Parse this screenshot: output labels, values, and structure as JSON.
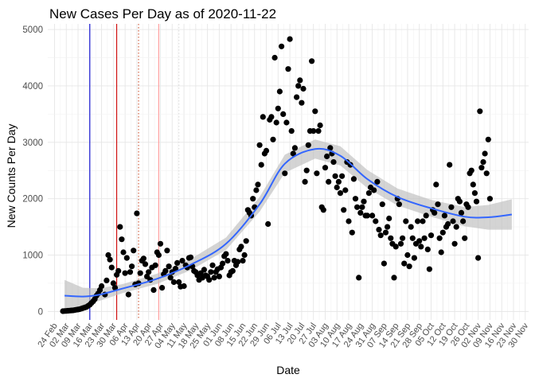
{
  "chart_data": {
    "type": "scatter",
    "title": "New Cases Per Day as of 2020-11-22",
    "xlabel": "Date",
    "ylabel": "New Counts Per Day",
    "xlim": [
      "2020-02-20",
      "2020-12-02"
    ],
    "ylim": [
      -150,
      5100
    ],
    "y_ticks": [
      0,
      1000,
      2000,
      3000,
      4000,
      5000
    ],
    "x_tick_labels": [
      "24 Feb",
      "02 Mar",
      "09 Mar",
      "16 Mar",
      "23 Mar",
      "30 Mar",
      "06 Apr",
      "13 Apr",
      "20 Apr",
      "27 Apr",
      "04 May",
      "11 May",
      "18 May",
      "25 May",
      "01 Jun",
      "08 Jun",
      "15 Jun",
      "22 Jun",
      "29 Jun",
      "06 Jul",
      "13 Jul",
      "20 Jul",
      "27 Jul",
      "03 Aug",
      "10 Aug",
      "17 Aug",
      "24 Aug",
      "31 Aug",
      "07 Sep",
      "14 Sep",
      "21 Sep",
      "28 Sep",
      "05 Oct",
      "12 Oct",
      "19 Oct",
      "26 Oct",
      "02 Nov",
      "09 Nov",
      "16 Nov",
      "23 Nov",
      "30 Nov"
    ],
    "x_tick_dates": [
      "2020-02-24",
      "2020-03-02",
      "2020-03-09",
      "2020-03-16",
      "2020-03-23",
      "2020-03-30",
      "2020-04-06",
      "2020-04-13",
      "2020-04-20",
      "2020-04-27",
      "2020-05-04",
      "2020-05-11",
      "2020-05-18",
      "2020-05-25",
      "2020-06-01",
      "2020-06-08",
      "2020-06-15",
      "2020-06-22",
      "2020-06-29",
      "2020-07-06",
      "2020-07-13",
      "2020-07-20",
      "2020-07-27",
      "2020-08-03",
      "2020-08-10",
      "2020-08-17",
      "2020-08-24",
      "2020-08-31",
      "2020-09-07",
      "2020-09-14",
      "2020-09-21",
      "2020-09-28",
      "2020-10-05",
      "2020-10-12",
      "2020-10-19",
      "2020-10-26",
      "2020-11-02",
      "2020-11-09",
      "2020-11-16",
      "2020-11-23",
      "2020-11-30"
    ],
    "grid": true,
    "vertical_lines": [
      {
        "date": "2020-03-16",
        "color": "#0000cc",
        "style": "solid"
      },
      {
        "date": "2020-04-01",
        "color": "#cc0000",
        "style": "solid"
      },
      {
        "date": "2020-04-14",
        "color": "#cc5533",
        "style": "dotted"
      },
      {
        "date": "2020-04-26",
        "color": "#ff9999",
        "style": "solid"
      },
      {
        "date": "2020-05-08",
        "color": "#dddddd",
        "style": "dotted"
      }
    ],
    "point_color": "#000000",
    "smooth": {
      "color": "#3366ff",
      "band_color": "#bdbdbd",
      "points": [
        {
          "x": "2020-03-01",
          "y": 280,
          "lo": 20,
          "hi": 560
        },
        {
          "x": "2020-03-12",
          "y": 265,
          "lo": 110,
          "hi": 420
        },
        {
          "x": "2020-03-22",
          "y": 300,
          "lo": 190,
          "hi": 410
        },
        {
          "x": "2020-04-05",
          "y": 410,
          "lo": 330,
          "hi": 490
        },
        {
          "x": "2020-04-25",
          "y": 580,
          "lo": 490,
          "hi": 670
        },
        {
          "x": "2020-05-15",
          "y": 830,
          "lo": 730,
          "hi": 930
        },
        {
          "x": "2020-06-05",
          "y": 1200,
          "lo": 1090,
          "hi": 1310
        },
        {
          "x": "2020-06-25",
          "y": 1900,
          "lo": 1770,
          "hi": 2030
        },
        {
          "x": "2020-07-10",
          "y": 2620,
          "lo": 2460,
          "hi": 2780
        },
        {
          "x": "2020-07-28",
          "y": 2880,
          "lo": 2710,
          "hi": 3050
        },
        {
          "x": "2020-08-12",
          "y": 2760,
          "lo": 2590,
          "hi": 2930
        },
        {
          "x": "2020-08-28",
          "y": 2350,
          "lo": 2190,
          "hi": 2510
        },
        {
          "x": "2020-09-15",
          "y": 2030,
          "lo": 1880,
          "hi": 2180
        },
        {
          "x": "2020-10-05",
          "y": 1830,
          "lo": 1680,
          "hi": 1980
        },
        {
          "x": "2020-10-25",
          "y": 1680,
          "lo": 1510,
          "hi": 1850
        },
        {
          "x": "2020-11-08",
          "y": 1670,
          "lo": 1450,
          "hi": 1890
        },
        {
          "x": "2020-11-22",
          "y": 1720,
          "lo": 1450,
          "hi": 1990
        }
      ]
    },
    "points": [
      [
        "2020-02-29",
        5
      ],
      [
        "2020-03-01",
        8
      ],
      [
        "2020-03-02",
        10
      ],
      [
        "2020-03-03",
        12
      ],
      [
        "2020-03-04",
        15
      ],
      [
        "2020-03-05",
        18
      ],
      [
        "2020-03-06",
        20
      ],
      [
        "2020-03-07",
        25
      ],
      [
        "2020-03-08",
        30
      ],
      [
        "2020-03-09",
        35
      ],
      [
        "2020-03-10",
        40
      ],
      [
        "2020-03-11",
        50
      ],
      [
        "2020-03-12",
        60
      ],
      [
        "2020-03-13",
        70
      ],
      [
        "2020-03-14",
        80
      ],
      [
        "2020-03-15",
        100
      ],
      [
        "2020-03-16",
        120
      ],
      [
        "2020-03-17",
        150
      ],
      [
        "2020-03-18",
        180
      ],
      [
        "2020-03-19",
        220
      ],
      [
        "2020-03-20",
        280
      ],
      [
        "2020-03-21",
        320
      ],
      [
        "2020-03-22",
        380
      ],
      [
        "2020-03-23",
        450
      ],
      [
        "2020-03-25",
        300
      ],
      [
        "2020-03-26",
        550
      ],
      [
        "2020-03-27",
        1000
      ],
      [
        "2020-03-28",
        920
      ],
      [
        "2020-03-29",
        780
      ],
      [
        "2020-03-30",
        500
      ],
      [
        "2020-03-31",
        420
      ],
      [
        "2020-04-01",
        650
      ],
      [
        "2020-04-02",
        720
      ],
      [
        "2020-04-03",
        1500
      ],
      [
        "2020-04-04",
        1280
      ],
      [
        "2020-04-05",
        1050
      ],
      [
        "2020-04-06",
        680
      ],
      [
        "2020-04-07",
        950
      ],
      [
        "2020-04-08",
        300
      ],
      [
        "2020-04-09",
        700
      ],
      [
        "2020-04-10",
        800
      ],
      [
        "2020-04-11",
        1080
      ],
      [
        "2020-04-12",
        480
      ],
      [
        "2020-04-13",
        1740
      ],
      [
        "2020-04-14",
        500
      ],
      [
        "2020-04-15",
        680
      ],
      [
        "2020-04-16",
        900
      ],
      [
        "2020-04-17",
        940
      ],
      [
        "2020-04-18",
        840
      ],
      [
        "2020-04-19",
        620
      ],
      [
        "2020-04-20",
        700
      ],
      [
        "2020-04-21",
        560
      ],
      [
        "2020-04-22",
        780
      ],
      [
        "2020-04-23",
        380
      ],
      [
        "2020-04-24",
        820
      ],
      [
        "2020-04-25",
        1050
      ],
      [
        "2020-04-26",
        1000
      ],
      [
        "2020-04-27",
        1200
      ],
      [
        "2020-04-28",
        420
      ],
      [
        "2020-04-29",
        660
      ],
      [
        "2020-04-30",
        720
      ],
      [
        "2020-05-01",
        1080
      ],
      [
        "2020-05-02",
        800
      ],
      [
        "2020-05-03",
        600
      ],
      [
        "2020-05-04",
        700
      ],
      [
        "2020-05-05",
        520
      ],
      [
        "2020-05-06",
        760
      ],
      [
        "2020-05-07",
        860
      ],
      [
        "2020-05-08",
        520
      ],
      [
        "2020-05-09",
        440
      ],
      [
        "2020-05-10",
        900
      ],
      [
        "2020-05-11",
        450
      ],
      [
        "2020-05-12",
        820
      ],
      [
        "2020-05-13",
        780
      ],
      [
        "2020-05-14",
        950
      ],
      [
        "2020-05-15",
        960
      ],
      [
        "2020-05-16",
        800
      ],
      [
        "2020-05-17",
        720
      ],
      [
        "2020-05-18",
        700
      ],
      [
        "2020-05-19",
        640
      ],
      [
        "2020-05-20",
        560
      ],
      [
        "2020-05-21",
        680
      ],
      [
        "2020-05-22",
        600
      ],
      [
        "2020-05-23",
        740
      ],
      [
        "2020-05-24",
        640
      ],
      [
        "2020-05-25",
        620
      ],
      [
        "2020-05-26",
        560
      ],
      [
        "2020-05-27",
        700
      ],
      [
        "2020-05-28",
        820
      ],
      [
        "2020-05-29",
        600
      ],
      [
        "2020-05-30",
        700
      ],
      [
        "2020-05-31",
        750
      ],
      [
        "2020-06-01",
        620
      ],
      [
        "2020-06-02",
        780
      ],
      [
        "2020-06-03",
        850
      ],
      [
        "2020-06-04",
        980
      ],
      [
        "2020-06-05",
        1020
      ],
      [
        "2020-06-06",
        900
      ],
      [
        "2020-06-07",
        640
      ],
      [
        "2020-06-08",
        700
      ],
      [
        "2020-06-09",
        720
      ],
      [
        "2020-06-10",
        900
      ],
      [
        "2020-06-11",
        820
      ],
      [
        "2020-06-12",
        880
      ],
      [
        "2020-06-13",
        1100
      ],
      [
        "2020-06-14",
        1150
      ],
      [
        "2020-06-15",
        900
      ],
      [
        "2020-06-16",
        1000
      ],
      [
        "2020-06-17",
        1250
      ],
      [
        "2020-06-18",
        1800
      ],
      [
        "2020-06-19",
        1750
      ],
      [
        "2020-06-20",
        1700
      ],
      [
        "2020-06-21",
        2000
      ],
      [
        "2020-06-22",
        1850
      ],
      [
        "2020-06-23",
        2150
      ],
      [
        "2020-06-24",
        2250
      ],
      [
        "2020-06-25",
        2950
      ],
      [
        "2020-06-26",
        2600
      ],
      [
        "2020-06-27",
        3450
      ],
      [
        "2020-06-28",
        2800
      ],
      [
        "2020-06-29",
        2850
      ],
      [
        "2020-06-30",
        1550
      ],
      [
        "2020-07-01",
        3400
      ],
      [
        "2020-07-02",
        3450
      ],
      [
        "2020-07-03",
        3050
      ],
      [
        "2020-07-04",
        4500
      ],
      [
        "2020-07-05",
        3350
      ],
      [
        "2020-07-06",
        3600
      ],
      [
        "2020-07-07",
        3900
      ],
      [
        "2020-07-08",
        4700
      ],
      [
        "2020-07-09",
        3500
      ],
      [
        "2020-07-10",
        2450
      ],
      [
        "2020-07-11",
        3350
      ],
      [
        "2020-07-12",
        4300
      ],
      [
        "2020-07-13",
        4830
      ],
      [
        "2020-07-14",
        3200
      ],
      [
        "2020-07-15",
        2800
      ],
      [
        "2020-07-16",
        2900
      ],
      [
        "2020-07-17",
        3800
      ],
      [
        "2020-07-18",
        4000
      ],
      [
        "2020-07-19",
        4100
      ],
      [
        "2020-07-20",
        3700
      ],
      [
        "2020-07-21",
        3950
      ],
      [
        "2020-07-22",
        2300
      ],
      [
        "2020-07-23",
        2500
      ],
      [
        "2020-07-24",
        2950
      ],
      [
        "2020-07-25",
        3200
      ],
      [
        "2020-07-26",
        4440
      ],
      [
        "2020-07-27",
        3200
      ],
      [
        "2020-07-28",
        3550
      ],
      [
        "2020-07-29",
        2450
      ],
      [
        "2020-07-30",
        3200
      ],
      [
        "2020-07-31",
        3300
      ],
      [
        "2020-08-01",
        1850
      ],
      [
        "2020-08-02",
        1800
      ],
      [
        "2020-08-03",
        2550
      ],
      [
        "2020-08-04",
        2750
      ],
      [
        "2020-08-05",
        2300
      ],
      [
        "2020-08-06",
        2900
      ],
      [
        "2020-08-07",
        2800
      ],
      [
        "2020-08-08",
        2650
      ],
      [
        "2020-08-09",
        2400
      ],
      [
        "2020-08-10",
        2200
      ],
      [
        "2020-08-11",
        2300
      ],
      [
        "2020-08-12",
        2100
      ],
      [
        "2020-08-13",
        2400
      ],
      [
        "2020-08-14",
        1800
      ],
      [
        "2020-08-15",
        2150
      ],
      [
        "2020-08-16",
        2650
      ],
      [
        "2020-08-17",
        1600
      ],
      [
        "2020-08-18",
        2600
      ],
      [
        "2020-08-19",
        1400
      ],
      [
        "2020-08-20",
        2350
      ],
      [
        "2020-08-21",
        2000
      ],
      [
        "2020-08-22",
        1850
      ],
      [
        "2020-08-23",
        600
      ],
      [
        "2020-08-24",
        1750
      ],
      [
        "2020-08-25",
        1850
      ],
      [
        "2020-08-26",
        1950
      ],
      [
        "2020-08-27",
        1700
      ],
      [
        "2020-08-28",
        1700
      ],
      [
        "2020-08-29",
        2100
      ],
      [
        "2020-08-30",
        2200
      ],
      [
        "2020-08-31",
        1700
      ],
      [
        "2020-09-01",
        2150
      ],
      [
        "2020-09-02",
        1600
      ],
      [
        "2020-09-03",
        2300
      ],
      [
        "2020-09-04",
        1450
      ],
      [
        "2020-09-05",
        1350
      ],
      [
        "2020-09-06",
        1900
      ],
      [
        "2020-09-07",
        850
      ],
      [
        "2020-09-08",
        1400
      ],
      [
        "2020-09-09",
        1500
      ],
      [
        "2020-09-10",
        1650
      ],
      [
        "2020-09-11",
        1300
      ],
      [
        "2020-09-12",
        1200
      ],
      [
        "2020-09-13",
        600
      ],
      [
        "2020-09-14",
        1150
      ],
      [
        "2020-09-15",
        2000
      ],
      [
        "2020-09-16",
        1900
      ],
      [
        "2020-09-17",
        1200
      ],
      [
        "2020-09-18",
        1300
      ],
      [
        "2020-09-19",
        850
      ],
      [
        "2020-09-20",
        1600
      ],
      [
        "2020-09-21",
        1000
      ],
      [
        "2020-09-22",
        800
      ],
      [
        "2020-09-23",
        1500
      ],
      [
        "2020-09-24",
        1300
      ],
      [
        "2020-09-25",
        950
      ],
      [
        "2020-09-26",
        1200
      ],
      [
        "2020-09-27",
        1600
      ],
      [
        "2020-09-28",
        1250
      ],
      [
        "2020-09-29",
        1150
      ],
      [
        "2020-09-30",
        1600
      ],
      [
        "2020-10-01",
        1300
      ],
      [
        "2020-10-02",
        1700
      ],
      [
        "2020-10-03",
        1100
      ],
      [
        "2020-10-04",
        750
      ],
      [
        "2020-10-05",
        1350
      ],
      [
        "2020-10-06",
        1800
      ],
      [
        "2020-10-07",
        1750
      ],
      [
        "2020-10-08",
        2250
      ],
      [
        "2020-10-09",
        1900
      ],
      [
        "2020-10-10",
        1300
      ],
      [
        "2020-10-11",
        1050
      ],
      [
        "2020-10-12",
        1400
      ],
      [
        "2020-10-13",
        1700
      ],
      [
        "2020-10-14",
        1500
      ],
      [
        "2020-10-15",
        1550
      ],
      [
        "2020-10-16",
        2600
      ],
      [
        "2020-10-17",
        1850
      ],
      [
        "2020-10-18",
        1600
      ],
      [
        "2020-10-19",
        1200
      ],
      [
        "2020-10-20",
        1500
      ],
      [
        "2020-10-21",
        2000
      ],
      [
        "2020-10-22",
        1950
      ],
      [
        "2020-10-23",
        1750
      ],
      [
        "2020-10-24",
        1600
      ],
      [
        "2020-10-25",
        1300
      ],
      [
        "2020-10-26",
        1900
      ],
      [
        "2020-10-27",
        1850
      ],
      [
        "2020-10-28",
        2450
      ],
      [
        "2020-10-29",
        2500
      ],
      [
        "2020-10-30",
        2250
      ],
      [
        "2020-10-31",
        2100
      ],
      [
        "2020-11-01",
        1950
      ],
      [
        "2020-11-02",
        950
      ],
      [
        "2020-11-03",
        3550
      ],
      [
        "2020-11-04",
        2550
      ],
      [
        "2020-11-05",
        2650
      ],
      [
        "2020-11-06",
        2800
      ],
      [
        "2020-11-07",
        2450
      ],
      [
        "2020-11-08",
        3050
      ],
      [
        "2020-11-09",
        2000
      ]
    ]
  }
}
